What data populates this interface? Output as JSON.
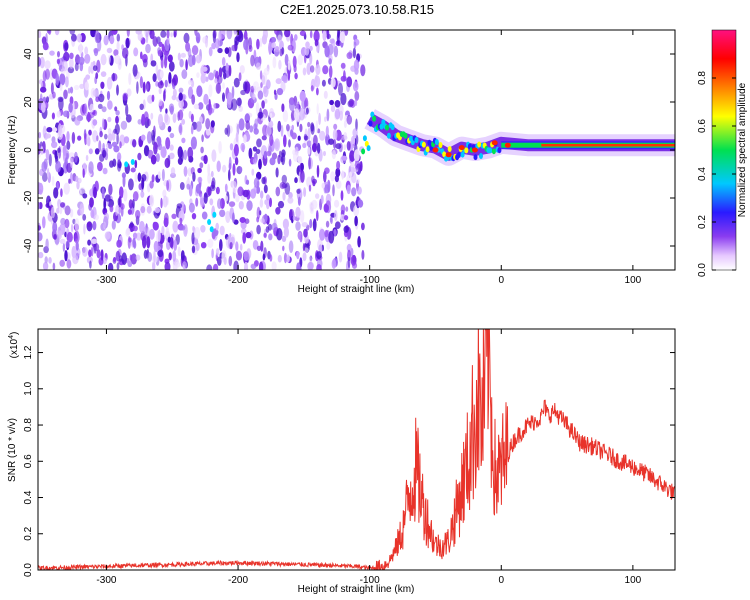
{
  "title": "C2E1.2025.073.10.58.R15",
  "colors": {
    "signal": "#e8332a",
    "axis": "#000000",
    "noise_purple": "#7a22e0"
  },
  "chart_data": [
    {
      "id": "spectrogram",
      "type": "heatmap",
      "xlabel": "Height of straight line (km)",
      "ylabel": "Frequency (Hz)",
      "xlim": [
        -352,
        132
      ],
      "ylim": [
        -50,
        50
      ],
      "xticks": [
        -300,
        -200,
        -100,
        0,
        100
      ],
      "yticks": [
        -40,
        -20,
        0,
        20,
        40
      ],
      "colorbar": {
        "label": "Normalized spectral amplitude",
        "range": [
          0,
          1
        ],
        "ticks": [
          "0.0",
          "0.2",
          "0.4",
          "0.6",
          "0.8"
        ],
        "tick_values": [
          0,
          0.2,
          0.4,
          0.6,
          0.8
        ],
        "colormap": [
          "#ffffff",
          "#e6c8ff",
          "#8a3cf0",
          "#2a1aff",
          "#00c8ff",
          "#00e050",
          "#ffff00",
          "#ff8000",
          "#ff0000",
          "#ff1080"
        ]
      },
      "noise_region_x": [
        -352,
        -105
      ],
      "signal_track": {
        "x": [
          -100,
          -90,
          -80,
          -70,
          -60,
          -50,
          -40,
          -30,
          -20,
          -10,
          0,
          20,
          60,
          100,
          132
        ],
        "y": [
          13,
          10,
          6,
          4,
          2,
          1,
          -2,
          1,
          0,
          1,
          3,
          2,
          2,
          2,
          2
        ]
      }
    },
    {
      "id": "snr",
      "type": "line",
      "xlabel": "Height of straight line (km)",
      "ylabel": "SNR (10 * v/v)",
      "y_scale_label": "(x10",
      "y_scale_exp": "4",
      "xlim": [
        -352,
        132
      ],
      "ylim": [
        0,
        1.33
      ],
      "xticks": [
        -300,
        -200,
        -100,
        0,
        100
      ],
      "yticks": [
        "0.0",
        "0.2",
        "0.4",
        "0.6",
        "0.8",
        "1.0",
        "1.2"
      ],
      "ytick_values": [
        0,
        0.2,
        0.4,
        0.6,
        0.8,
        1.0,
        1.2
      ],
      "series": [
        {
          "name": "SNR",
          "x": [
            -352,
            -300,
            -250,
            -200,
            -150,
            -110,
            -100,
            -90,
            -85,
            -80,
            -75,
            -70,
            -65,
            -62,
            -60,
            -57,
            -55,
            -52,
            -50,
            -45,
            -40,
            -35,
            -30,
            -25,
            -20,
            -17,
            -15,
            -12,
            -10,
            -8,
            -5,
            -2,
            0,
            5,
            10,
            15,
            20,
            25,
            30,
            33,
            36,
            40,
            45,
            50,
            60,
            70,
            80,
            90,
            100,
            110,
            120,
            132
          ],
          "y": [
            0.01,
            0.02,
            0.03,
            0.04,
            0.03,
            0.02,
            0.01,
            0.02,
            0.05,
            0.12,
            0.22,
            0.42,
            0.55,
            0.48,
            0.38,
            0.3,
            0.25,
            0.18,
            0.14,
            0.13,
            0.16,
            0.3,
            0.45,
            0.6,
            0.85,
            0.98,
            0.78,
            1.0,
            1.33,
            0.9,
            0.55,
            0.52,
            0.56,
            0.64,
            0.72,
            0.76,
            0.8,
            0.82,
            0.84,
            0.9,
            0.85,
            0.88,
            0.84,
            0.8,
            0.7,
            0.68,
            0.64,
            0.6,
            0.57,
            0.53,
            0.48,
            0.42
          ]
        }
      ]
    }
  ]
}
